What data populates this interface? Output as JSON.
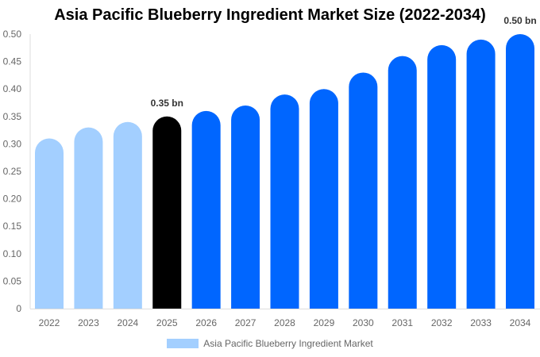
{
  "chart_data": {
    "type": "bar",
    "title": "Asia Pacific Blueberry Ingredient Market Size (2022-2034)",
    "xlabel": "",
    "ylabel": "",
    "ylim": [
      0,
      0.5
    ],
    "yticks": [
      "0",
      "0.05",
      "0.10",
      "0.15",
      "0.20",
      "0.25",
      "0.30",
      "0.35",
      "0.40",
      "0.45",
      "0.50"
    ],
    "categories": [
      "2022",
      "2023",
      "2024",
      "2025",
      "2026",
      "2027",
      "2028",
      "2029",
      "2030",
      "2031",
      "2032",
      "2033",
      "2034"
    ],
    "series": [
      {
        "name": "Asia Pacific Blueberry Ingredient Market",
        "values": [
          0.31,
          0.33,
          0.34,
          0.35,
          0.36,
          0.37,
          0.39,
          0.4,
          0.43,
          0.46,
          0.48,
          0.49,
          0.5
        ]
      }
    ],
    "bar_colors": [
      "#a3cfff",
      "#a3cfff",
      "#a3cfff",
      "#000000",
      "#0066ff",
      "#0066ff",
      "#0066ff",
      "#0066ff",
      "#0066ff",
      "#0066ff",
      "#0066ff",
      "#0066ff",
      "#0066ff"
    ],
    "data_labels": [
      {
        "index": 3,
        "text": "0.35 bn"
      },
      {
        "index": 12,
        "text": "0.50 bn"
      }
    ],
    "legend_position": "bottom",
    "legend_color": "#a3cfff",
    "grid": false
  }
}
